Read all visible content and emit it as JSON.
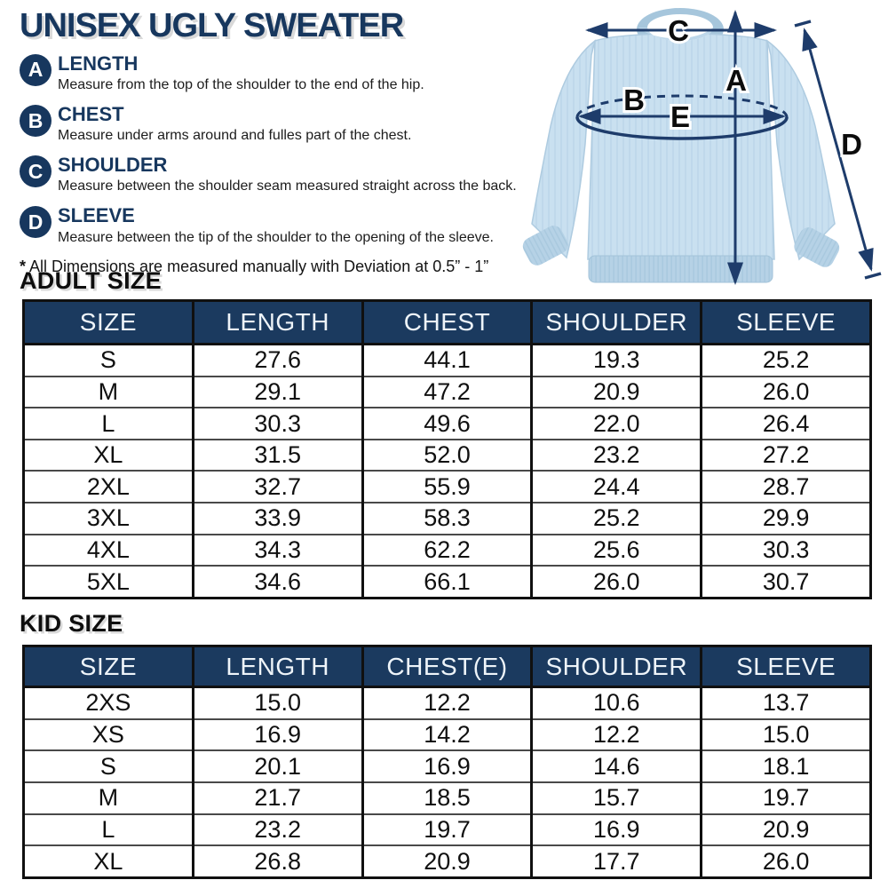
{
  "page": {
    "title": "UNISEX UGLY SWEATER",
    "note_star": "*",
    "note_text": "All Dimensions are measured manually with Deviation at 0.5” - 1”"
  },
  "measurements": [
    {
      "letter": "A",
      "label": "LENGTH",
      "description": "Measure from the top of the shoulder to the end of the hip."
    },
    {
      "letter": "B",
      "label": "CHEST",
      "description": "Measure under arms around and fulles part of the chest."
    },
    {
      "letter": "C",
      "label": "SHOULDER",
      "description": "Measure between the shoulder seam measured straight across the back."
    },
    {
      "letter": "D",
      "label": "SLEEVE",
      "description": "Measure between the tip of the shoulder to the opening of the sleeve."
    }
  ],
  "diagram": {
    "labels": [
      "A",
      "B",
      "C",
      "D",
      "E"
    ]
  },
  "adult_table": {
    "heading": "ADULT SIZE",
    "columns": [
      "SIZE",
      "LENGTH",
      "CHEST",
      "SHOULDER",
      "SLEEVE"
    ],
    "rows": [
      [
        "S",
        "27.6",
        "44.1",
        "19.3",
        "25.2"
      ],
      [
        "M",
        "29.1",
        "47.2",
        "20.9",
        "26.0"
      ],
      [
        "L",
        "30.3",
        "49.6",
        "22.0",
        "26.4"
      ],
      [
        "XL",
        "31.5",
        "52.0",
        "23.2",
        "27.2"
      ],
      [
        "2XL",
        "32.7",
        "55.9",
        "24.4",
        "28.7"
      ],
      [
        "3XL",
        "33.9",
        "58.3",
        "25.2",
        "29.9"
      ],
      [
        "4XL",
        "34.3",
        "62.2",
        "25.6",
        "30.3"
      ],
      [
        "5XL",
        "34.6",
        "66.1",
        "26.0",
        "30.7"
      ]
    ]
  },
  "kid_table": {
    "heading": "KID SIZE",
    "columns": [
      "SIZE",
      "LENGTH",
      "CHEST(E)",
      "SHOULDER",
      "SLEEVE"
    ],
    "rows": [
      [
        "2XS",
        "15.0",
        "12.2",
        "10.6",
        "13.7"
      ],
      [
        "XS",
        "16.9",
        "14.2",
        "12.2",
        "15.0"
      ],
      [
        "S",
        "20.1",
        "16.9",
        "14.6",
        "18.1"
      ],
      [
        "M",
        "21.7",
        "18.5",
        "15.7",
        "19.7"
      ],
      [
        "L",
        "23.2",
        "19.7",
        "16.9",
        "20.9"
      ],
      [
        "XL",
        "26.8",
        "20.9",
        "17.7",
        "26.0"
      ]
    ]
  },
  "colors": {
    "navy_heading": "#17375e",
    "table_header_bg": "#1b3a5f",
    "table_border": "#101010",
    "arrow_navy": "#1e3c6b",
    "sweater_blue": "#c9e0f0",
    "sweater_blue_dark": "#b6d2e6"
  }
}
